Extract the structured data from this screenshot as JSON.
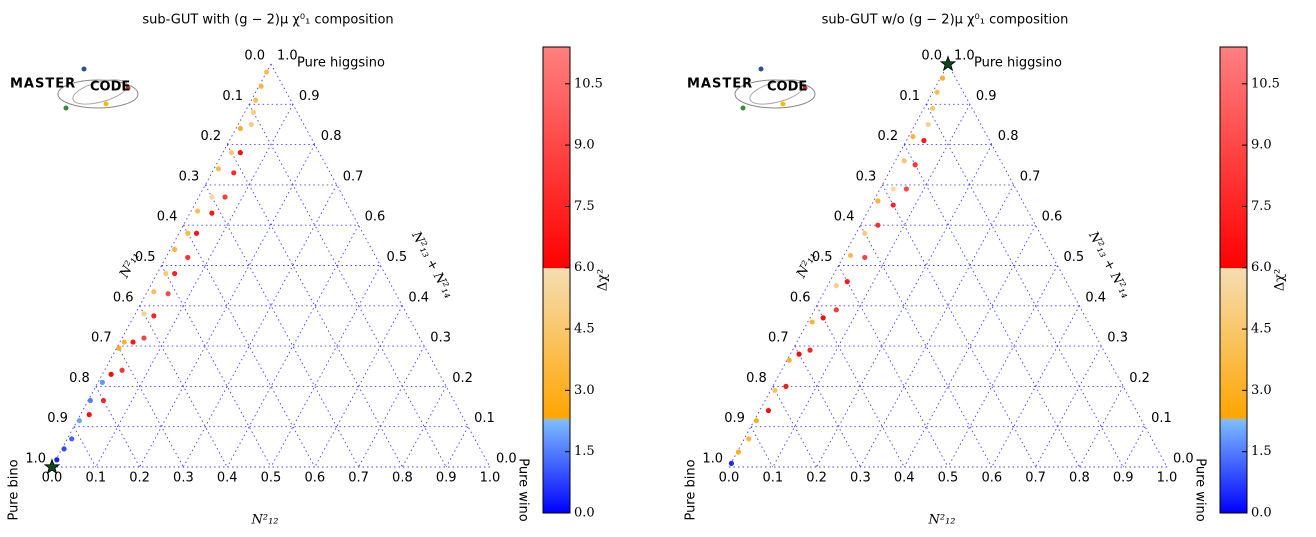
{
  "chart_data": [
    {
      "type": "ternary",
      "title": "sub-GUT with (g − 2)μ    χ⁰₁ composition",
      "x_label": "N²₁₂",
      "left_label": "N²₁₁",
      "right_label": "N²₁₃ + N²₁₄",
      "corner_labels": {
        "top": "Pure higgsino",
        "left": "Pure bino",
        "right": "Pure wino"
      },
      "logo": {
        "main": "MASTER",
        "sub": "CODE"
      },
      "ticks": [
        {
          "value": 0,
          "label": "0.0"
        },
        {
          "value": 0.1,
          "label": "0.1"
        },
        {
          "value": 0.2,
          "label": "0.2"
        },
        {
          "value": 0.3,
          "label": "0.3"
        },
        {
          "value": 0.4,
          "label": "0.4"
        },
        {
          "value": 0.5,
          "label": "0.5"
        },
        {
          "value": 0.6,
          "label": "0.6"
        },
        {
          "value": 0.7,
          "label": "0.7"
        },
        {
          "value": 0.8,
          "label": "0.8"
        },
        {
          "value": 0.9,
          "label": "0.9"
        },
        {
          "value": 1,
          "label": "1.0"
        }
      ],
      "grid": true,
      "colorbar": {
        "label": "Δχ²",
        "lim": [
          0,
          11.4
        ],
        "ticks": [
          {
            "value": 0,
            "label": "0.0"
          },
          {
            "value": 1.5,
            "label": "1.5"
          },
          {
            "value": 3,
            "label": "3.0"
          },
          {
            "value": 4.5,
            "label": "4.5"
          },
          {
            "value": 6,
            "label": "6.0"
          },
          {
            "value": 7.5,
            "label": "7.5"
          },
          {
            "value": 9,
            "label": "9.0"
          },
          {
            "value": 10.5,
            "label": "10.5"
          }
        ],
        "segments": [
          {
            "from": 0,
            "to": 2.3,
            "colors": [
              "#0000ff",
              "#7fbfff"
            ]
          },
          {
            "from": 2.3,
            "to": 5.99,
            "colors": [
              "#ffa500",
              "#f5deb3"
            ]
          },
          {
            "from": 5.99,
            "to": 11.4,
            "colors": [
              "#ff0000",
              "#ff8080"
            ]
          }
        ]
      },
      "best_fit": {
        "bino": 1,
        "wino": 0
      },
      "points": {
        "bino": [
          0.02,
          0.05,
          0.08,
          0.1,
          0.12,
          0.15,
          0.18,
          0.2,
          0.22,
          0.25,
          0.27,
          0.3,
          0.32,
          0.35,
          0.38,
          0.4,
          0.43,
          0.45,
          0.48,
          0.5,
          0.52,
          0.55,
          0.58,
          0.6,
          0.63,
          0.66,
          0.68,
          0.72,
          0.75,
          0.78,
          0.8,
          0.83,
          0.85,
          0.88,
          0.92,
          0.95,
          0.98,
          0.7
        ],
        "wino": [
          0,
          0.005,
          0.01,
          0.02,
          0.03,
          0.01,
          0.04,
          0.02,
          0.05,
          0.01,
          0.06,
          0.03,
          0.05,
          0.015,
          0.04,
          0.02,
          0.05,
          0.01,
          0.04,
          0.02,
          0.05,
          0.015,
          0.045,
          0.02,
          0.05,
          0.03,
          0.01,
          0.04,
          0.02,
          0.01,
          0.035,
          0.005,
          0.02,
          0.005,
          0.01,
          0.005,
          0.002,
          0.005
        ],
        "delta_chi2": [
          4.0,
          3.5,
          4.2,
          5.0,
          4.8,
          3.2,
          6.5,
          4.5,
          7.8,
          3.8,
          8.5,
          5.5,
          7.0,
          4.0,
          6.8,
          3.6,
          8.0,
          3.4,
          7.2,
          4.6,
          9.2,
          4.1,
          7.5,
          5.2,
          8.8,
          6.9,
          3.3,
          8.1,
          6.2,
          1.8,
          7.7,
          1.5,
          6.6,
          2.0,
          1.2,
          0.9,
          0.4,
          2.8
        ]
      }
    },
    {
      "type": "ternary",
      "title": "sub-GUT w/o (g − 2)μ    χ⁰₁ composition",
      "x_label": "N²₁₂",
      "left_label": "N²₁₁",
      "right_label": "N²₁₃ + N²₁₄",
      "corner_labels": {
        "top": "Pure higgsino",
        "left": "Pure bino",
        "right": "Pure wino"
      },
      "logo": {
        "main": "MASTER",
        "sub": "CODE"
      },
      "ticks": [
        {
          "value": 0,
          "label": "0.0"
        },
        {
          "value": 0.1,
          "label": "0.1"
        },
        {
          "value": 0.2,
          "label": "0.2"
        },
        {
          "value": 0.3,
          "label": "0.3"
        },
        {
          "value": 0.4,
          "label": "0.4"
        },
        {
          "value": 0.5,
          "label": "0.5"
        },
        {
          "value": 0.6,
          "label": "0.6"
        },
        {
          "value": 0.7,
          "label": "0.7"
        },
        {
          "value": 0.8,
          "label": "0.8"
        },
        {
          "value": 0.9,
          "label": "0.9"
        },
        {
          "value": 1,
          "label": "1.0"
        }
      ],
      "grid": true,
      "colorbar": {
        "label": "Δχ²",
        "lim": [
          0,
          11.4
        ],
        "ticks": [
          {
            "value": 0,
            "label": "0.0"
          },
          {
            "value": 1.5,
            "label": "1.5"
          },
          {
            "value": 3,
            "label": "3.0"
          },
          {
            "value": 4.5,
            "label": "4.5"
          },
          {
            "value": 6,
            "label": "6.0"
          },
          {
            "value": 7.5,
            "label": "7.5"
          },
          {
            "value": 9,
            "label": "9.0"
          },
          {
            "value": 10.5,
            "label": "10.5"
          }
        ],
        "segments": [
          {
            "from": 0,
            "to": 2.3,
            "colors": [
              "#0000ff",
              "#7fbfff"
            ]
          },
          {
            "from": 2.3,
            "to": 5.99,
            "colors": [
              "#ffa500",
              "#f5deb3"
            ]
          },
          {
            "from": 5.99,
            "to": 11.4,
            "colors": [
              "#ff0000",
              "#ff8080"
            ]
          }
        ]
      },
      "best_fit": {
        "bino": 0,
        "wino": 0
      },
      "points": {
        "bino": [
          0.03,
          0.06,
          0.09,
          0.12,
          0.15,
          0.17,
          0.2,
          0.22,
          0.25,
          0.28,
          0.3,
          0.33,
          0.36,
          0.4,
          0.43,
          0.46,
          0.5,
          0.53,
          0.56,
          0.6,
          0.63,
          0.67,
          0.7,
          0.73,
          0.77,
          0.8,
          0.84,
          0.88,
          0.92,
          0.96,
          0.99
        ],
        "wino": [
          0.005,
          0.01,
          0.02,
          0.03,
          0.04,
          0.01,
          0.05,
          0.02,
          0.06,
          0.03,
          0.05,
          0.01,
          0.04,
          0.02,
          0.05,
          0.015,
          0.04,
          0.02,
          0.05,
          0.03,
          0.01,
          0.04,
          0.02,
          0.005,
          0.03,
          0.01,
          0.02,
          0.005,
          0.01,
          0.003,
          0.001
        ],
        "delta_chi2": [
          3.2,
          3.8,
          4.5,
          5.2,
          6.8,
          3.5,
          8.2,
          4.4,
          9.0,
          5.6,
          7.4,
          3.3,
          7.9,
          4.8,
          8.6,
          3.9,
          7.1,
          5.0,
          8.4,
          6.5,
          3.4,
          7.6,
          6.1,
          3.1,
          7.0,
          4.2,
          6.4,
          3.0,
          3.6,
          2.9,
          0.5
        ]
      }
    }
  ]
}
